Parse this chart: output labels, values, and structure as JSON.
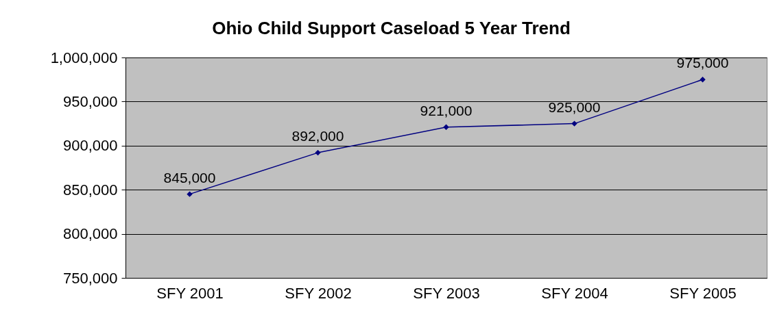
{
  "chart_data": {
    "type": "line",
    "title": "Ohio Child Support Caseload 5 Year Trend",
    "categories": [
      "SFY 2001",
      "SFY 2002",
      "SFY 2003",
      "SFY 2004",
      "SFY 2005"
    ],
    "series": [
      {
        "color": "#000080",
        "values": [
          845000,
          892000,
          921000,
          925000,
          975000
        ],
        "value_labels": [
          "845,000",
          "892,000",
          "921,000",
          "925,000",
          "975,000"
        ]
      }
    ],
    "ylim": [
      750000,
      1000000
    ],
    "yticks": [
      {
        "value": 750000,
        "label": "750,000"
      },
      {
        "value": 800000,
        "label": "800,000"
      },
      {
        "value": 850000,
        "label": "850,000"
      },
      {
        "value": 900000,
        "label": "900,000"
      },
      {
        "value": 950000,
        "label": "950,000"
      },
      {
        "value": 1000000,
        "label": "1,000,000"
      }
    ],
    "grid": "y",
    "marker": "diamond",
    "line_style": "solid",
    "legend": false
  }
}
